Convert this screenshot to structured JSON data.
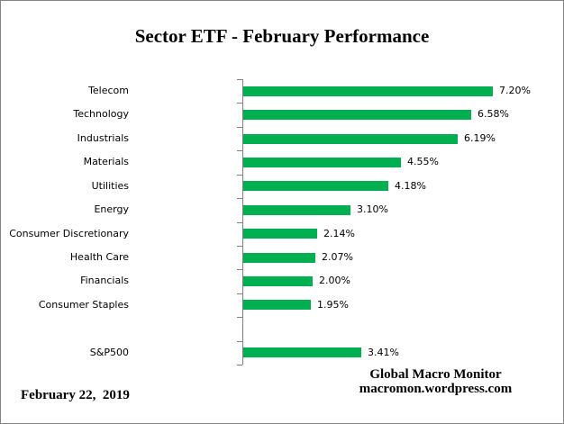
{
  "title": "Sector ETF - February Performance",
  "chart_data": {
    "type": "bar",
    "orientation": "horizontal",
    "title": "Sector ETF - February Performance",
    "xlabel": "",
    "ylabel": "",
    "categories": [
      "Telecom",
      "Technology",
      "Industrials",
      "Materials",
      "Utilities",
      "Energy",
      "Consumer Discretionary",
      "Health Care",
      "Financials",
      "Consumer Staples",
      "",
      "S&P500"
    ],
    "values": [
      7.2,
      6.58,
      6.19,
      4.55,
      4.18,
      3.1,
      2.14,
      2.07,
      2.0,
      1.95,
      null,
      3.41
    ],
    "value_labels": [
      "7.20%",
      "6.58%",
      "6.19%",
      "4.55%",
      "4.18%",
      "3.10%",
      "2.14%",
      "2.07%",
      "2.00%",
      "1.95%",
      "",
      "3.41%"
    ],
    "xlim": [
      0,
      9.3
    ],
    "grid": false,
    "legend": false,
    "bar_color": "#00B050",
    "axis_color": "#808080",
    "label_color": "#000000"
  },
  "footer": {
    "date": "February 22,  2019",
    "credit_line1": "Global Macro Monitor",
    "credit_line2": "macromon.wordpress.com"
  }
}
